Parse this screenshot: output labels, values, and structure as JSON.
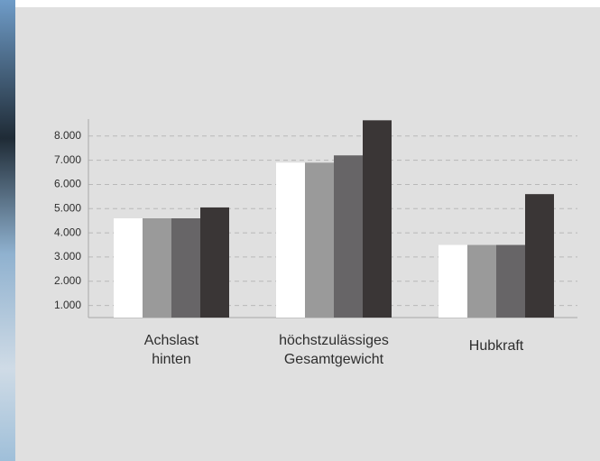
{
  "chart_data": {
    "type": "bar",
    "categories": [
      [
        "Achslast",
        "hinten"
      ],
      [
        "höchstzulässiges",
        "Gesamtgewicht"
      ],
      [
        "Hubkraft"
      ]
    ],
    "series": [
      {
        "color": "#ffffff",
        "values": [
          4600,
          6900,
          3500
        ]
      },
      {
        "color": "#9a9a9a",
        "values": [
          4600,
          6900,
          3500
        ]
      },
      {
        "color": "#676567",
        "values": [
          4600,
          7200,
          3500
        ]
      },
      {
        "color": "#3a3636",
        "values": [
          5050,
          8650,
          5600
        ]
      }
    ],
    "ylim": [
      500,
      8700
    ],
    "yticks": [
      {
        "value": 1000,
        "label": "1.000"
      },
      {
        "value": 2000,
        "label": "2.000"
      },
      {
        "value": 3000,
        "label": "3.000"
      },
      {
        "value": 4000,
        "label": "4.000"
      },
      {
        "value": 5000,
        "label": "5.000"
      },
      {
        "value": 6000,
        "label": "6.000"
      },
      {
        "value": 7000,
        "label": "7.000"
      },
      {
        "value": 8000,
        "label": "8.000"
      }
    ],
    "grid": true
  }
}
